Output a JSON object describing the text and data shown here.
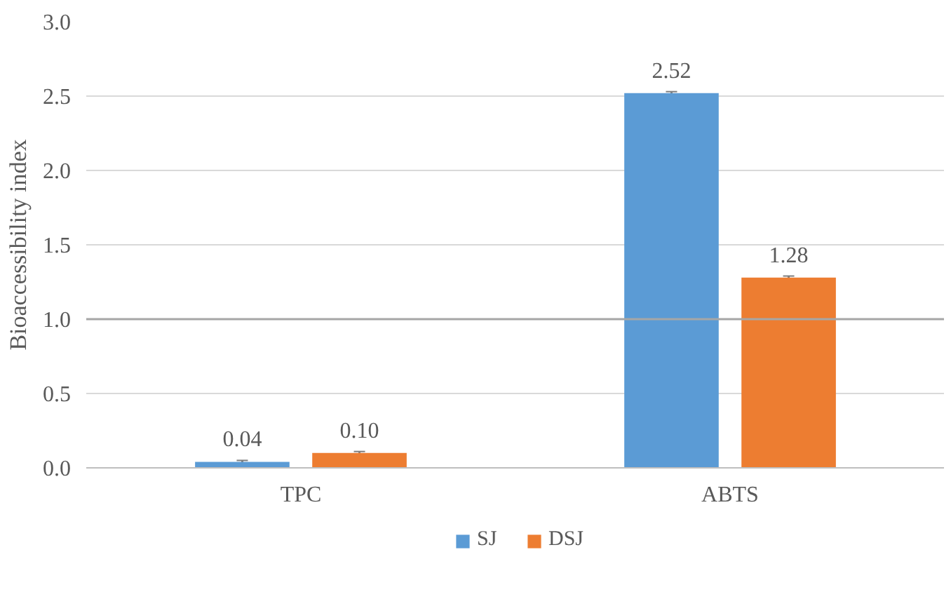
{
  "chart_data": {
    "type": "bar",
    "ylabel": "Bioaccessibility index",
    "categories": [
      "TPC",
      "ABTS"
    ],
    "series": [
      {
        "name": "SJ",
        "color": "#5b9bd5",
        "values": [
          0.04,
          2.52
        ],
        "errors": [
          0.01,
          0.01
        ],
        "value_labels": [
          "0.04",
          "2.52"
        ]
      },
      {
        "name": "DSJ",
        "color": "#ed7d31",
        "values": [
          0.1,
          1.28
        ],
        "errors": [
          0.01,
          0.01
        ],
        "value_labels": [
          "0.10",
          "1.28"
        ]
      }
    ],
    "ylim": [
      0,
      3
    ],
    "yticks": [
      {
        "value": 0,
        "label": "0.0"
      },
      {
        "value": 0.5,
        "label": "0.5"
      },
      {
        "value": 1,
        "label": "1.0"
      },
      {
        "value": 1.5,
        "label": "1.5"
      },
      {
        "value": 2,
        "label": "2.0"
      },
      {
        "value": 2.5,
        "label": "2.5"
      },
      {
        "value": 3,
        "label": "3.0"
      }
    ],
    "ref_lines": [
      {
        "axis": "y",
        "value": 1,
        "color": "#a6a6a6"
      }
    ],
    "grid": "y",
    "legend": "bottom"
  }
}
